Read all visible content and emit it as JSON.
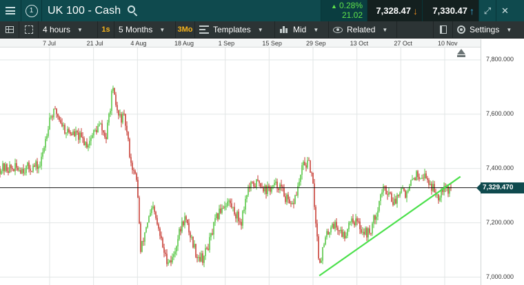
{
  "header": {
    "menu_icon": "hamburger-menu-icon",
    "badge": "1",
    "instrument": "UK 100 - Cash",
    "change_pct": "0.28%",
    "change_points": "21.02",
    "bid": "7,328.47",
    "offer": "7,330.47",
    "colors": {
      "up": "#5fe34a",
      "down_arrow": "#e58a1f",
      "up_arrow": "#3fb7e8",
      "bar": "#0f4a4e"
    }
  },
  "toolbar": {
    "interval": "4 hours",
    "interval_short": "1s",
    "range": "5 Months",
    "range_short": "3Mo",
    "templates": "Templates",
    "price_type": "Mid",
    "related": "Related",
    "settings": "Settings"
  },
  "date_axis": [
    "7 Jul",
    "21 Jul",
    "4 Aug",
    "18 Aug",
    "1 Sep",
    "15 Sep",
    "29 Sep",
    "13 Oct",
    "27 Oct",
    "10 Nov"
  ],
  "price_axis": [
    "7,800.000",
    "7,600.000",
    "7,400.000",
    "7,200.000",
    "7,000.000"
  ],
  "current_price": "7,329.470",
  "chart_data": {
    "type": "candlestick",
    "instrument": "UK 100 - Cash",
    "interval": "4 hours",
    "ylim": [
      6990,
      7860
    ],
    "y_ticks": [
      7000,
      7200,
      7400,
      7600,
      7800
    ],
    "x_labels": [
      "7 Jul",
      "21 Jul",
      "4 Aug",
      "18 Aug",
      "1 Sep",
      "15 Sep",
      "29 Sep",
      "13 Oct",
      "27 Oct",
      "10 Nov"
    ],
    "current_price_line": 7329.47,
    "trendline": {
      "from": {
        "x": "1 Oct",
        "y": 7005
      },
      "to": {
        "x": "15 Nov",
        "y": 7370
      },
      "color": "#4be04b"
    },
    "up_color": "#3fbf2a",
    "down_color": "#c0231a",
    "path": [
      [
        "29 Jun",
        7400
      ],
      [
        "4 Jul",
        7410
      ],
      [
        "7 Jul",
        7590
      ],
      [
        "9 Jul",
        7610
      ],
      [
        "12 Jul",
        7540
      ],
      [
        "16 Jul",
        7520
      ],
      [
        "19 Jul",
        7490
      ],
      [
        "21 Jul",
        7530
      ],
      [
        "23 Jul",
        7560
      ],
      [
        "25 Jul",
        7510
      ],
      [
        "27 Jul",
        7690
      ],
      [
        "29 Jul",
        7590
      ],
      [
        "31 Jul",
        7580
      ],
      [
        "2 Aug",
        7420
      ],
      [
        "4 Aug",
        7340
      ],
      [
        "5 Aug",
        7090
      ],
      [
        "7 Aug",
        7200
      ],
      [
        "9 Aug",
        7250
      ],
      [
        "11 Aug",
        7160
      ],
      [
        "13 Aug",
        7070
      ],
      [
        "15 Aug",
        7060
      ],
      [
        "17 Aug",
        7150
      ],
      [
        "19 Aug",
        7220
      ],
      [
        "21 Aug",
        7150
      ],
      [
        "23 Aug",
        7080
      ],
      [
        "25 Aug",
        7070
      ],
      [
        "27 Aug",
        7130
      ],
      [
        "29 Aug",
        7210
      ],
      [
        "31 Aug",
        7260
      ],
      [
        "2 Sep",
        7280
      ],
      [
        "4 Sep",
        7240
      ],
      [
        "6 Sep",
        7200
      ],
      [
        "8 Sep",
        7320
      ],
      [
        "10 Sep",
        7340
      ],
      [
        "12 Sep",
        7350
      ],
      [
        "14 Sep",
        7320
      ],
      [
        "16 Sep",
        7330
      ],
      [
        "18 Sep",
        7340
      ],
      [
        "20 Sep",
        7300
      ],
      [
        "22 Sep",
        7250
      ],
      [
        "24 Sep",
        7320
      ],
      [
        "26 Sep",
        7420
      ],
      [
        "28 Sep",
        7410
      ],
      [
        "29 Sep",
        7330
      ],
      [
        "1 Oct",
        7050
      ],
      [
        "3 Oct",
        7140
      ],
      [
        "5 Oct",
        7200
      ],
      [
        "7 Oct",
        7180
      ],
      [
        "9 Oct",
        7150
      ],
      [
        "11 Oct",
        7220
      ],
      [
        "13 Oct",
        7200
      ],
      [
        "15 Oct",
        7170
      ],
      [
        "17 Oct",
        7160
      ],
      [
        "19 Oct",
        7230
      ],
      [
        "21 Oct",
        7320
      ],
      [
        "23 Oct",
        7320
      ],
      [
        "25 Oct",
        7270
      ],
      [
        "27 Oct",
        7340
      ],
      [
        "29 Oct",
        7300
      ],
      [
        "31 Oct",
        7370
      ],
      [
        "2 Nov",
        7380
      ],
      [
        "4 Nov",
        7370
      ],
      [
        "6 Nov",
        7330
      ],
      [
        "8 Nov",
        7300
      ],
      [
        "10 Nov",
        7350
      ],
      [
        "11 Nov",
        7320
      ],
      [
        "12 Nov",
        7329
      ]
    ]
  }
}
